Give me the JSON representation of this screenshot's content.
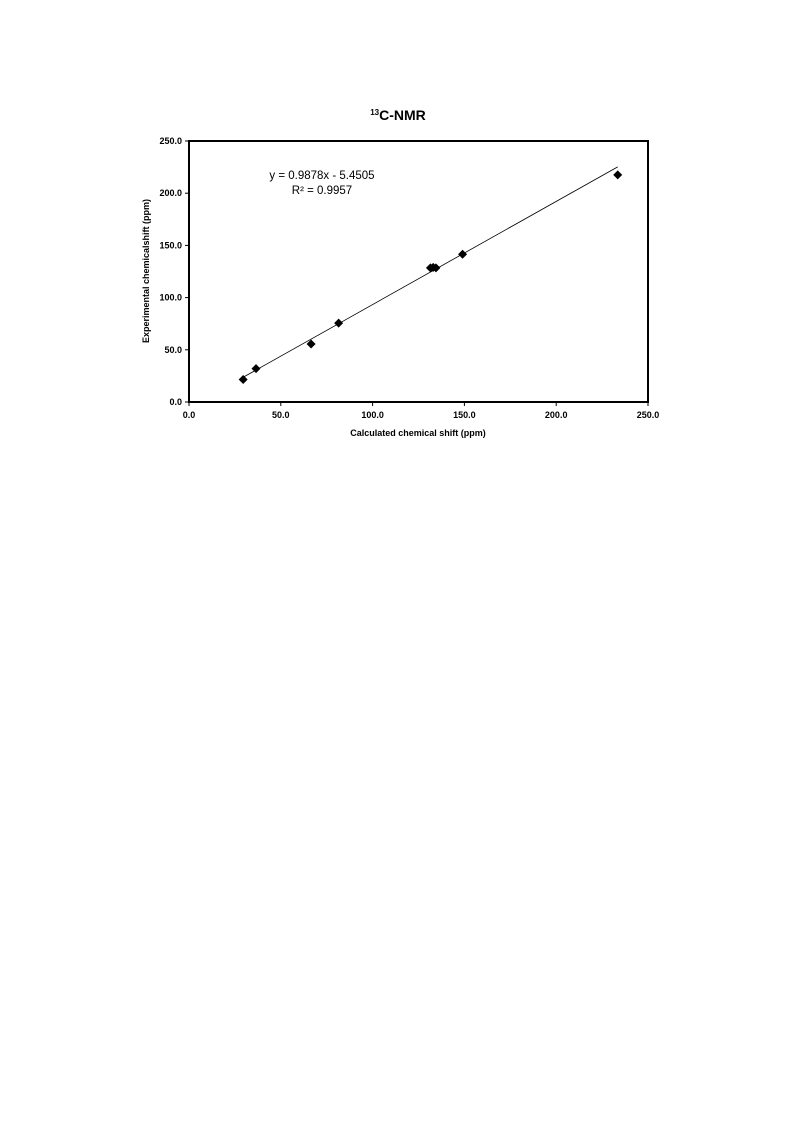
{
  "chart_data": {
    "type": "scatter",
    "title_sup": "13",
    "title_main": "C-NMR",
    "xlabel": "Calculated chemical shift (ppm)",
    "ylabel": "Experimental chemicalshift (ppm)",
    "xlim": [
      0,
      250
    ],
    "ylim": [
      0,
      250
    ],
    "xticks": [
      "0.0",
      "50.0",
      "100.0",
      "150.0",
      "200.0",
      "250.0"
    ],
    "yticks": [
      "0.0",
      "50.0",
      "100.0",
      "150.0",
      "200.0",
      "250.0"
    ],
    "grid": false,
    "marker": "diamond",
    "marker_color": "#000000",
    "points": [
      {
        "x": 29.5,
        "y": 21.5
      },
      {
        "x": 36.5,
        "y": 32.0
      },
      {
        "x": 66.5,
        "y": 55.5
      },
      {
        "x": 81.5,
        "y": 75.5
      },
      {
        "x": 131.5,
        "y": 128.5
      },
      {
        "x": 133.0,
        "y": 129.0
      },
      {
        "x": 134.5,
        "y": 128.5
      },
      {
        "x": 149.0,
        "y": 141.5
      },
      {
        "x": 233.5,
        "y": 217.5
      }
    ],
    "trendline": {
      "type": "linear",
      "slope": 0.9878,
      "intercept": -5.4505,
      "x_range": [
        29.5,
        233.5
      ],
      "equation": "y = 0.9878x - 5.4505",
      "r_squared": "R² = 0.9957"
    }
  }
}
